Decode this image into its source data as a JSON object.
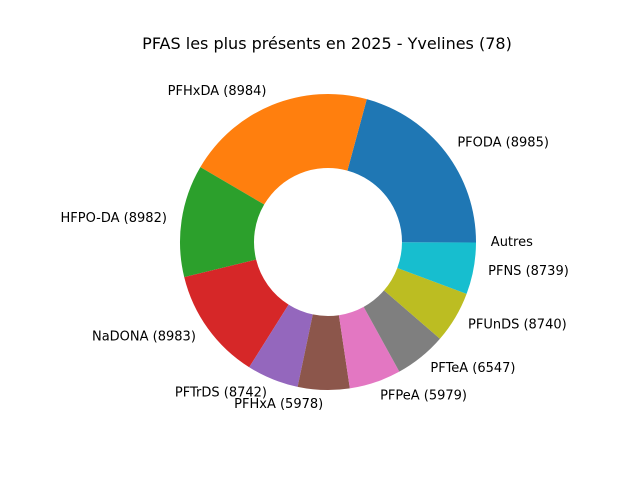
{
  "chart_data": {
    "type": "pie",
    "title": "PFAS les plus présents en 2025 - Yvelines (78)",
    "donut": true,
    "slices": [
      {
        "label": "PFODA (8985)",
        "value": 19.5,
        "color": "#1f77b4"
      },
      {
        "label": "PFHxDA (8984)",
        "value": 19.5,
        "color": "#ff7f0e"
      },
      {
        "label": "HFPO-DA (8982)",
        "value": 11.5,
        "color": "#2ca02c"
      },
      {
        "label": "NaDONA (8983)",
        "value": 11.5,
        "color": "#d62728"
      },
      {
        "label": "PFTrDS (8742)",
        "value": 5.3,
        "color": "#9467bd"
      },
      {
        "label": "PFHxA (5978)",
        "value": 5.3,
        "color": "#8c564b"
      },
      {
        "label": "PFPeA (5979)",
        "value": 5.3,
        "color": "#e377c2"
      },
      {
        "label": "PFTeA (6547)",
        "value": 5.3,
        "color": "#7f7f7f"
      },
      {
        "label": "PFUnDS (8740)",
        "value": 5.3,
        "color": "#bcbd22"
      },
      {
        "label": "PFNS (8739)",
        "value": 5.3,
        "color": "#17becf"
      },
      {
        "label": "Autres",
        "value": 0.05,
        "color": "#1f77b4"
      }
    ]
  }
}
